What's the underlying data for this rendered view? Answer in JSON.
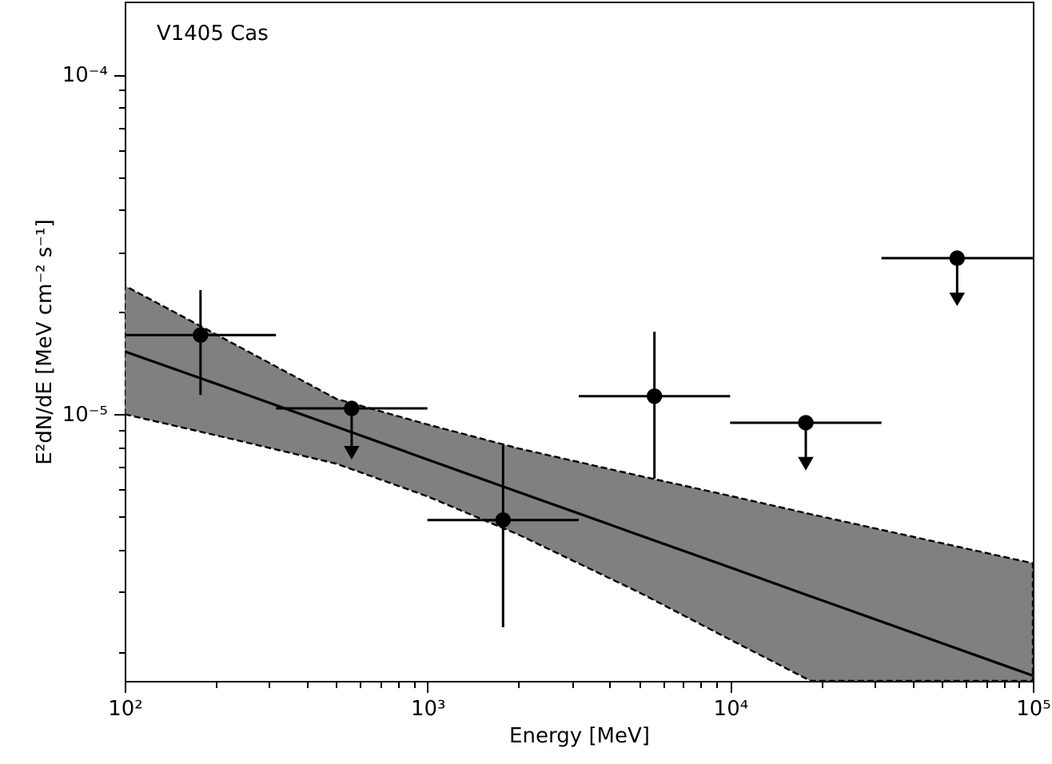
{
  "chart_data": {
    "type": "scatter",
    "log": "xy",
    "grid": false,
    "xlabel": "Energy [MeV]",
    "ylabel": "E²dN/dE [MeV cm⁻² s⁻¹]",
    "annotations": [
      "V1405 Cas"
    ],
    "xlim": [
      100,
      100000
    ],
    "ylim": [
      1.64e-06,
      0.000164
    ],
    "xticks": [
      {
        "value": 100,
        "label": "10²"
      },
      {
        "value": 200,
        "label": null
      },
      {
        "value": 300,
        "label": null
      },
      {
        "value": 400,
        "label": null
      },
      {
        "value": 500,
        "label": null
      },
      {
        "value": 600,
        "label": null
      },
      {
        "value": 700,
        "label": null
      },
      {
        "value": 800,
        "label": null
      },
      {
        "value": 900,
        "label": null
      },
      {
        "value": 1000,
        "label": "10³"
      },
      {
        "value": 2000,
        "label": null
      },
      {
        "value": 3000,
        "label": null
      },
      {
        "value": 4000,
        "label": null
      },
      {
        "value": 5000,
        "label": null
      },
      {
        "value": 6000,
        "label": null
      },
      {
        "value": 7000,
        "label": null
      },
      {
        "value": 8000,
        "label": null
      },
      {
        "value": 9000,
        "label": null
      },
      {
        "value": 10000,
        "label": "10⁴"
      },
      {
        "value": 20000,
        "label": null
      },
      {
        "value": 30000,
        "label": null
      },
      {
        "value": 40000,
        "label": null
      },
      {
        "value": 50000,
        "label": null
      },
      {
        "value": 60000,
        "label": null
      },
      {
        "value": 70000,
        "label": null
      },
      {
        "value": 80000,
        "label": null
      },
      {
        "value": 90000,
        "label": null
      },
      {
        "value": 100000,
        "label": "10⁵"
      }
    ],
    "yticks": [
      {
        "value": 2e-06,
        "label": null
      },
      {
        "value": 3e-06,
        "label": null
      },
      {
        "value": 4e-06,
        "label": null
      },
      {
        "value": 5e-06,
        "label": null
      },
      {
        "value": 6e-06,
        "label": null
      },
      {
        "value": 7e-06,
        "label": null
      },
      {
        "value": 8e-06,
        "label": null
      },
      {
        "value": 9e-06,
        "label": null
      },
      {
        "value": 1e-05,
        "label": "10⁻⁵"
      },
      {
        "value": 2e-05,
        "label": null
      },
      {
        "value": 3e-05,
        "label": null
      },
      {
        "value": 4e-05,
        "label": null
      },
      {
        "value": 5e-05,
        "label": null
      },
      {
        "value": 6e-05,
        "label": null
      },
      {
        "value": 7e-05,
        "label": null
      },
      {
        "value": 8e-05,
        "label": null
      },
      {
        "value": 9e-05,
        "label": null
      },
      {
        "value": 0.0001,
        "label": "10⁻⁴"
      }
    ],
    "series": [
      {
        "type": "line",
        "color": "#000000",
        "x": [
          100,
          200,
          500,
          1000,
          2000,
          5000,
          10000,
          18450,
          100000
        ],
        "values": [
          1.53e-05,
          1.23e-05,
          9.18e-06,
          7.36e-06,
          5.9e-06,
          4.41e-06,
          3.54e-06,
          2.91e-06,
          1.7e-06
        ],
        "lower": [
          1e-05,
          8.67e-06,
          7.15e-06,
          5.73e-06,
          4.42e-06,
          2.99e-06,
          2.17e-06,
          1.64e-06,
          1.64e-06
        ],
        "upper": [
          2.39e-05,
          1.72e-05,
          1.11e-05,
          9.33e-06,
          7.93e-06,
          6.59e-06,
          5.75e-06,
          5.08e-06,
          3.64e-06
        ]
      },
      {
        "type": "scatter",
        "color": "#000000",
        "marker": "circle",
        "x": [
          178,
          1778,
          5623
        ],
        "values": [
          1.71e-05,
          4.88e-06,
          1.13e-05
        ],
        "errors": [
          [
            1.14e-05,
            2.32e-05
          ],
          [
            2.36e-06,
            8.1e-06
          ],
          [
            6.46e-06,
            1.75e-05
          ]
        ],
        "xerrors": [
          [
            100,
            316
          ],
          [
            1000,
            3162
          ],
          [
            3162,
            10000
          ]
        ]
      },
      {
        "type": "scatter",
        "color": "#000000",
        "marker": "circle",
        "x": [
          562,
          17783,
          56234
        ],
        "values": [
          1.04e-05,
          9.44e-06,
          2.88e-05
        ],
        "errors": [
          [
            7.74e-06,
            1.04e-05
          ],
          [
            7.19e-06,
            9.44e-06
          ],
          [
            2.19e-05,
            2.88e-05
          ]
        ],
        "xerrors": [
          [
            316,
            1000
          ],
          [
            10000,
            31623
          ],
          [
            31623,
            100000
          ]
        ]
      }
    ]
  }
}
